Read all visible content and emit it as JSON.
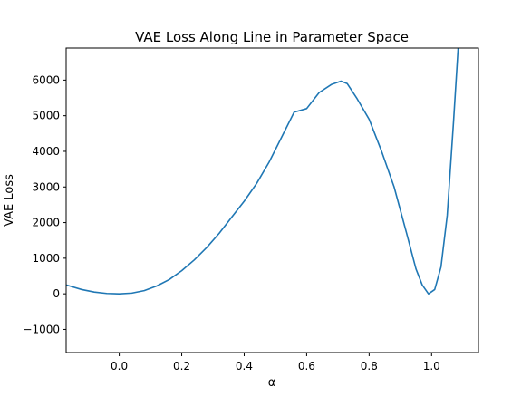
{
  "chart_data": {
    "type": "line",
    "title": "VAE Loss Along Line in Parameter Space",
    "xlabel": "α",
    "ylabel": "VAE Loss",
    "xlim": [
      -0.17,
      1.15
    ],
    "ylim": [
      -1650,
      6900
    ],
    "grid": false,
    "xticks": [
      0.0,
      0.2,
      0.4,
      0.6,
      0.8,
      1.0
    ],
    "xtick_labels": [
      "0.0",
      "0.2",
      "0.4",
      "0.6",
      "0.8",
      "1.0"
    ],
    "yticks": [
      -1000,
      0,
      1000,
      2000,
      3000,
      4000,
      5000,
      6000
    ],
    "ytick_labels": [
      "−1000",
      "0",
      "1000",
      "2000",
      "3000",
      "4000",
      "5000",
      "6000"
    ],
    "series": [
      {
        "color": "#1f77b4",
        "x": [
          -0.17,
          -0.12,
          -0.08,
          -0.04,
          0.0,
          0.04,
          0.08,
          0.12,
          0.16,
          0.2,
          0.24,
          0.28,
          0.32,
          0.36,
          0.4,
          0.44,
          0.48,
          0.52,
          0.56,
          0.6,
          0.64,
          0.68,
          0.71,
          0.73,
          0.76,
          0.8,
          0.84,
          0.88,
          0.92,
          0.95,
          0.97,
          0.99,
          1.01,
          1.03,
          1.05,
          1.07,
          1.085
        ],
        "y": [
          250,
          120,
          50,
          10,
          0,
          20,
          90,
          220,
          400,
          650,
          950,
          1300,
          1700,
          2150,
          2600,
          3100,
          3700,
          4400,
          5100,
          5200,
          5650,
          5880,
          5970,
          5900,
          5500,
          4900,
          4000,
          3000,
          1700,
          700,
          250,
          0,
          120,
          750,
          2200,
          4800,
          6900
        ]
      }
    ]
  }
}
